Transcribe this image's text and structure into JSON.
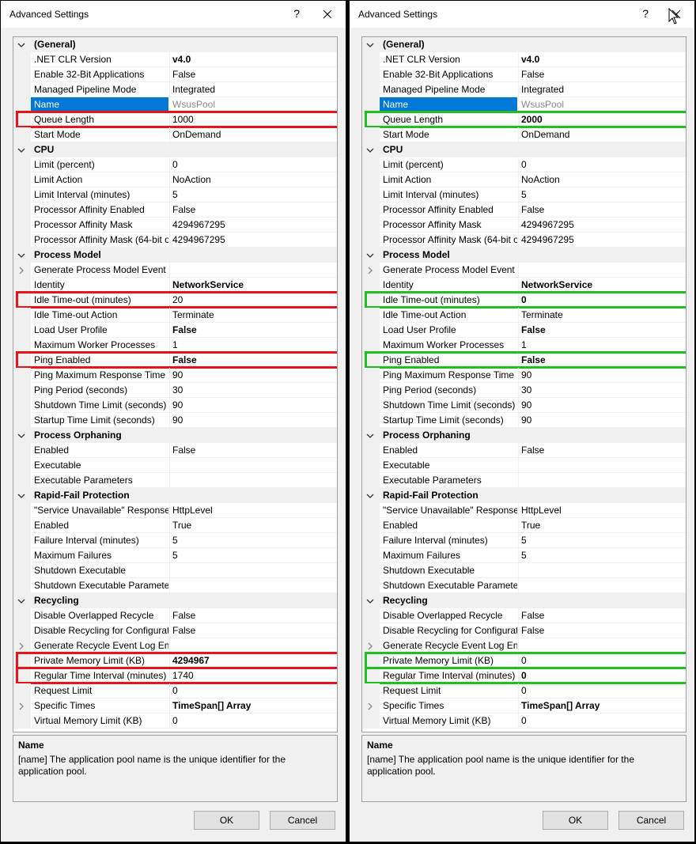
{
  "dialog_title": "Advanced Settings",
  "help_label": "?",
  "ok_label": "OK",
  "cancel_label": "Cancel",
  "description": {
    "title": "Name",
    "text": "[name] The application pool name is the unique identifier for the application pool."
  },
  "colors": {
    "changed_before": "#e8141b",
    "changed_after": "#1fc11f",
    "selection": "#0078d7"
  },
  "left_panel": {
    "rows": [
      {
        "type": "cat",
        "name": "(General)"
      },
      {
        "name": ".NET CLR Version",
        "value": "v4.0",
        "bold": true
      },
      {
        "name": "Enable 32-Bit Applications",
        "value": "False"
      },
      {
        "name": "Managed Pipeline Mode",
        "value": "Integrated"
      },
      {
        "name": "Name",
        "value": "WsusPool",
        "selected": true
      },
      {
        "name": "Queue Length",
        "value": "1000",
        "mark": "red"
      },
      {
        "name": "Start Mode",
        "value": "OnDemand"
      },
      {
        "type": "cat",
        "name": "CPU"
      },
      {
        "name": "Limit (percent)",
        "value": "0"
      },
      {
        "name": "Limit Action",
        "value": "NoAction"
      },
      {
        "name": "Limit Interval (minutes)",
        "value": "5"
      },
      {
        "name": "Processor Affinity Enabled",
        "value": "False"
      },
      {
        "name": "Processor Affinity Mask",
        "value": "4294967295"
      },
      {
        "name": "Processor Affinity Mask (64-bit o",
        "value": "4294967295"
      },
      {
        "type": "cat",
        "name": "Process Model"
      },
      {
        "name": "Generate Process Model Event L",
        "value": "",
        "expand": true
      },
      {
        "name": "Identity",
        "value": "NetworkService",
        "bold": true
      },
      {
        "name": "Idle Time-out (minutes)",
        "value": "20",
        "mark": "red"
      },
      {
        "name": "Idle Time-out Action",
        "value": "Terminate"
      },
      {
        "name": "Load User Profile",
        "value": "False",
        "bold": true
      },
      {
        "name": "Maximum Worker Processes",
        "value": "1"
      },
      {
        "name": "Ping Enabled",
        "value": "False",
        "bold": true,
        "mark": "red"
      },
      {
        "name": "Ping Maximum Response Time (",
        "value": "90"
      },
      {
        "name": "Ping Period (seconds)",
        "value": "30"
      },
      {
        "name": "Shutdown Time Limit (seconds)",
        "value": "90"
      },
      {
        "name": "Startup Time Limit (seconds)",
        "value": "90"
      },
      {
        "type": "cat",
        "name": "Process Orphaning"
      },
      {
        "name": "Enabled",
        "value": "False"
      },
      {
        "name": "Executable",
        "value": ""
      },
      {
        "name": "Executable Parameters",
        "value": ""
      },
      {
        "type": "cat",
        "name": "Rapid-Fail Protection"
      },
      {
        "name": "\"Service Unavailable\" Response T",
        "value": "HttpLevel"
      },
      {
        "name": "Enabled",
        "value": "True"
      },
      {
        "name": "Failure Interval (minutes)",
        "value": "5"
      },
      {
        "name": "Maximum Failures",
        "value": "5"
      },
      {
        "name": "Shutdown Executable",
        "value": ""
      },
      {
        "name": "Shutdown Executable Parameter",
        "value": ""
      },
      {
        "type": "cat",
        "name": "Recycling"
      },
      {
        "name": "Disable Overlapped Recycle",
        "value": "False"
      },
      {
        "name": "Disable Recycling for Configurat",
        "value": "False"
      },
      {
        "name": "Generate Recycle Event Log Entr",
        "value": "",
        "expand": true
      },
      {
        "name": "Private Memory Limit (KB)",
        "value": "4294967",
        "bold": true,
        "mark": "red"
      },
      {
        "name": "Regular Time Interval (minutes)",
        "value": "1740",
        "mark": "red"
      },
      {
        "name": "Request Limit",
        "value": "0"
      },
      {
        "name": "Specific Times",
        "value": "TimeSpan[] Array",
        "bold": true,
        "expand": true
      },
      {
        "name": "Virtual Memory Limit (KB)",
        "value": "0"
      }
    ]
  },
  "right_panel": {
    "rows": [
      {
        "type": "cat",
        "name": "(General)"
      },
      {
        "name": ".NET CLR Version",
        "value": "v4.0",
        "bold": true
      },
      {
        "name": "Enable 32-Bit Applications",
        "value": "False"
      },
      {
        "name": "Managed Pipeline Mode",
        "value": "Integrated"
      },
      {
        "name": "Name",
        "value": "WsusPool",
        "selected": true
      },
      {
        "name": "Queue Length",
        "value": "2000",
        "bold": true,
        "mark": "green"
      },
      {
        "name": "Start Mode",
        "value": "OnDemand"
      },
      {
        "type": "cat",
        "name": "CPU"
      },
      {
        "name": "Limit (percent)",
        "value": "0"
      },
      {
        "name": "Limit Action",
        "value": "NoAction"
      },
      {
        "name": "Limit Interval (minutes)",
        "value": "5"
      },
      {
        "name": "Processor Affinity Enabled",
        "value": "False"
      },
      {
        "name": "Processor Affinity Mask",
        "value": "4294967295"
      },
      {
        "name": "Processor Affinity Mask (64-bit o",
        "value": "4294967295"
      },
      {
        "type": "cat",
        "name": "Process Model"
      },
      {
        "name": "Generate Process Model Event L",
        "value": "",
        "expand": true
      },
      {
        "name": "Identity",
        "value": "NetworkService",
        "bold": true
      },
      {
        "name": "Idle Time-out (minutes)",
        "value": "0",
        "bold": true,
        "mark": "green"
      },
      {
        "name": "Idle Time-out Action",
        "value": "Terminate"
      },
      {
        "name": "Load User Profile",
        "value": "False",
        "bold": true
      },
      {
        "name": "Maximum Worker Processes",
        "value": "1"
      },
      {
        "name": "Ping Enabled",
        "value": "False",
        "bold": true,
        "mark": "green"
      },
      {
        "name": "Ping Maximum Response Time (",
        "value": "90"
      },
      {
        "name": "Ping Period (seconds)",
        "value": "30"
      },
      {
        "name": "Shutdown Time Limit (seconds)",
        "value": "90"
      },
      {
        "name": "Startup Time Limit (seconds)",
        "value": "90"
      },
      {
        "type": "cat",
        "name": "Process Orphaning"
      },
      {
        "name": "Enabled",
        "value": "False"
      },
      {
        "name": "Executable",
        "value": ""
      },
      {
        "name": "Executable Parameters",
        "value": ""
      },
      {
        "type": "cat",
        "name": "Rapid-Fail Protection"
      },
      {
        "name": "\"Service Unavailable\" Response T",
        "value": "HttpLevel"
      },
      {
        "name": "Enabled",
        "value": "True"
      },
      {
        "name": "Failure Interval (minutes)",
        "value": "5"
      },
      {
        "name": "Maximum Failures",
        "value": "5"
      },
      {
        "name": "Shutdown Executable",
        "value": ""
      },
      {
        "name": "Shutdown Executable Parameter",
        "value": ""
      },
      {
        "type": "cat",
        "name": "Recycling"
      },
      {
        "name": "Disable Overlapped Recycle",
        "value": "False"
      },
      {
        "name": "Disable Recycling for Configurat",
        "value": "False"
      },
      {
        "name": "Generate Recycle Event Log Entr",
        "value": "",
        "expand": true
      },
      {
        "name": "Private Memory Limit (KB)",
        "value": "0",
        "mark": "green"
      },
      {
        "name": "Regular Time Interval (minutes)",
        "value": "0",
        "bold": true,
        "mark": "green"
      },
      {
        "name": "Request Limit",
        "value": "0"
      },
      {
        "name": "Specific Times",
        "value": "TimeSpan[] Array",
        "bold": true,
        "expand": true
      },
      {
        "name": "Virtual Memory Limit (KB)",
        "value": "0"
      }
    ]
  }
}
